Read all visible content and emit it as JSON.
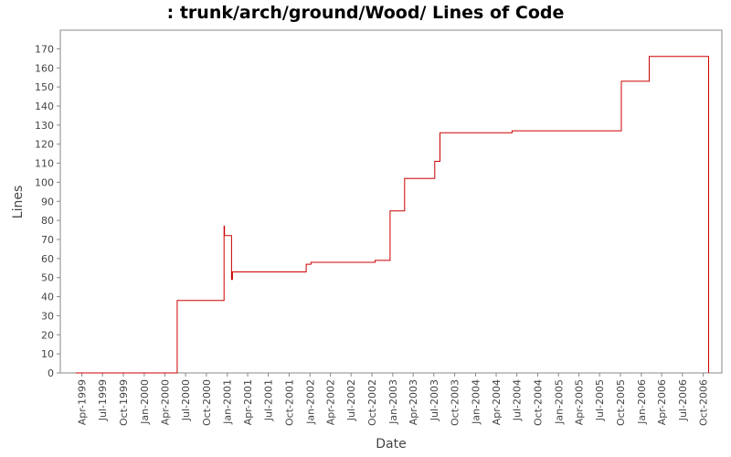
{
  "chart_data": {
    "type": "line",
    "step": true,
    "title": ": trunk/arch/ground/Wood/ Lines of Code",
    "xlabel": "Date",
    "ylabel": "Lines",
    "ylim": [
      0,
      175
    ],
    "yticks": [
      0,
      10,
      20,
      30,
      40,
      50,
      60,
      70,
      80,
      90,
      100,
      110,
      120,
      130,
      140,
      150,
      160,
      170
    ],
    "xlim": [
      "1999-02-01",
      "2006-11-20"
    ],
    "xticks": [
      {
        "date": "1999-04-01",
        "label": "Apr-1999"
      },
      {
        "date": "1999-07-01",
        "label": "Jul-1999"
      },
      {
        "date": "1999-10-01",
        "label": "Oct-1999"
      },
      {
        "date": "2000-01-01",
        "label": "Jan-2000"
      },
      {
        "date": "2000-04-01",
        "label": "Apr-2000"
      },
      {
        "date": "2000-07-01",
        "label": "Jul-2000"
      },
      {
        "date": "2000-10-01",
        "label": "Oct-2000"
      },
      {
        "date": "2001-01-01",
        "label": "Jan-2001"
      },
      {
        "date": "2001-04-01",
        "label": "Apr-2001"
      },
      {
        "date": "2001-07-01",
        "label": "Jul-2001"
      },
      {
        "date": "2001-10-01",
        "label": "Oct-2001"
      },
      {
        "date": "2002-01-01",
        "label": "Jan-2002"
      },
      {
        "date": "2002-04-01",
        "label": "Apr-2002"
      },
      {
        "date": "2002-07-01",
        "label": "Jul-2002"
      },
      {
        "date": "2002-10-01",
        "label": "Oct-2002"
      },
      {
        "date": "2003-01-01",
        "label": "Jan-2003"
      },
      {
        "date": "2003-04-01",
        "label": "Apr-2003"
      },
      {
        "date": "2003-07-01",
        "label": "Jul-2003"
      },
      {
        "date": "2003-10-01",
        "label": "Oct-2003"
      },
      {
        "date": "2004-01-01",
        "label": "Jan-2004"
      },
      {
        "date": "2004-04-01",
        "label": "Apr-2004"
      },
      {
        "date": "2004-07-01",
        "label": "Jul-2004"
      },
      {
        "date": "2004-10-01",
        "label": "Oct-2004"
      },
      {
        "date": "2005-01-01",
        "label": "Jan-2005"
      },
      {
        "date": "2005-04-01",
        "label": "Apr-2005"
      },
      {
        "date": "2005-07-01",
        "label": "Jul-2005"
      },
      {
        "date": "2005-10-01",
        "label": "Oct-2005"
      },
      {
        "date": "2006-01-01",
        "label": "Jan-2006"
      },
      {
        "date": "2006-04-01",
        "label": "Apr-2006"
      },
      {
        "date": "2006-07-01",
        "label": "Jul-2006"
      },
      {
        "date": "2006-10-01",
        "label": "Oct-2006"
      }
    ],
    "series": [
      {
        "color": "#cc0000",
        "points": [
          {
            "x": "1999-03-05",
            "y": 0
          },
          {
            "x": "2000-05-25",
            "y": 38
          },
          {
            "x": "2000-12-18",
            "y": 77
          },
          {
            "x": "2000-12-20",
            "y": 72
          },
          {
            "x": "2001-01-20",
            "y": 49
          },
          {
            "x": "2001-01-24",
            "y": 53
          },
          {
            "x": "2001-12-15",
            "y": 57
          },
          {
            "x": "2002-01-05",
            "y": 58
          },
          {
            "x": "2002-10-15",
            "y": 59
          },
          {
            "x": "2002-12-20",
            "y": 85
          },
          {
            "x": "2003-02-22",
            "y": 102
          },
          {
            "x": "2003-07-05",
            "y": 111
          },
          {
            "x": "2003-07-28",
            "y": 126
          },
          {
            "x": "2004-06-10",
            "y": 127
          },
          {
            "x": "2005-10-05",
            "y": 153
          },
          {
            "x": "2006-02-05",
            "y": 166
          },
          {
            "x": "2006-10-25",
            "y": 0
          }
        ]
      }
    ]
  }
}
